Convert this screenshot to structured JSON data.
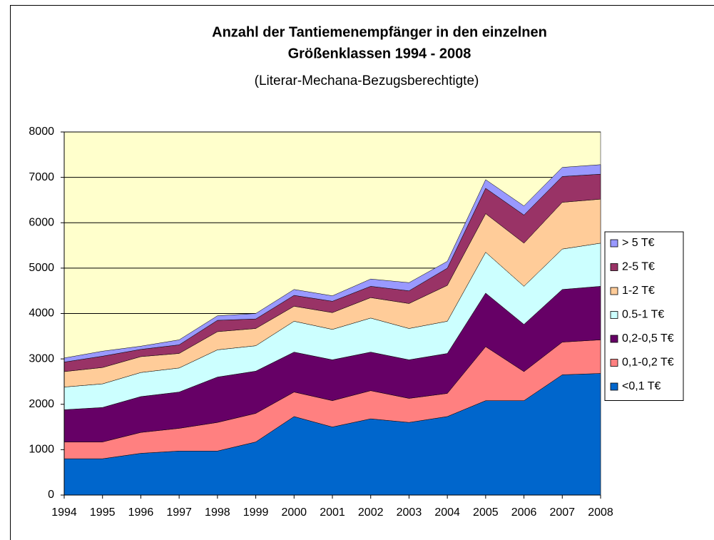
{
  "chart_data": {
    "type": "stacked_area",
    "title": [
      "Anzahl der Tantiemenempfänger in den einzelnen",
      "Größenklassen 1994 - 2008"
    ],
    "subtitle": "(Literar-Mechana-Bezugsberechtigte)",
    "categories": [
      "1994",
      "1995",
      "1996",
      "1997",
      "1998",
      "1999",
      "2000",
      "2001",
      "2002",
      "2003",
      "2004",
      "2005",
      "2006",
      "2007",
      "2008"
    ],
    "series": [
      {
        "name": "<0,1 T€",
        "color": "#0066cc",
        "values": [
          800,
          800,
          920,
          970,
          970,
          1170,
          1730,
          1500,
          1680,
          1600,
          1730,
          2080,
          2080,
          2650,
          2680
        ]
      },
      {
        "name": "0,1-0,2 T€",
        "color": "#ff8080",
        "values": [
          370,
          370,
          460,
          500,
          630,
          630,
          540,
          580,
          620,
          530,
          510,
          1190,
          640,
          720,
          740
        ]
      },
      {
        "name": "0,2-0,5 T€",
        "color": "#660066",
        "values": [
          710,
          760,
          790,
          800,
          1000,
          930,
          880,
          900,
          850,
          850,
          880,
          1180,
          1040,
          1160,
          1180
        ]
      },
      {
        "name": "0.5-1 T€",
        "color": "#ccffff",
        "values": [
          500,
          520,
          530,
          530,
          600,
          560,
          680,
          670,
          750,
          690,
          710,
          900,
          840,
          890,
          950
        ]
      },
      {
        "name": "1-2 T€",
        "color": "#ffcc99",
        "values": [
          340,
          360,
          350,
          320,
          400,
          380,
          330,
          370,
          450,
          550,
          790,
          850,
          950,
          1030,
          970
        ]
      },
      {
        "name": "2-5 T€",
        "color": "#993366",
        "values": [
          210,
          250,
          160,
          190,
          250,
          210,
          240,
          250,
          250,
          280,
          380,
          560,
          620,
          570,
          550
        ]
      },
      {
        "name": "> 5 T€",
        "color": "#9999ff",
        "values": [
          90,
          110,
          70,
          110,
          100,
          120,
          130,
          120,
          160,
          180,
          150,
          190,
          200,
          200,
          210
        ]
      }
    ],
    "ylim": [
      0,
      8000
    ],
    "yticks": [
      0,
      1000,
      2000,
      3000,
      4000,
      5000,
      6000,
      7000,
      8000
    ],
    "grid": true,
    "plot_background": "#ffffcc",
    "legend": "right"
  }
}
